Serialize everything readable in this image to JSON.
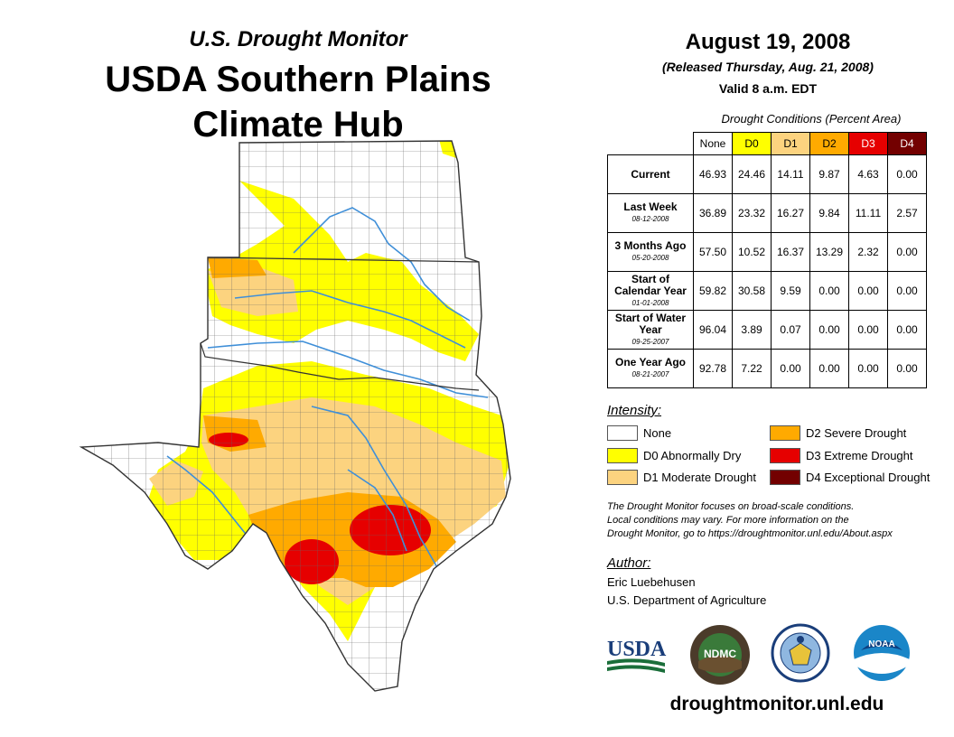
{
  "header": {
    "subtitle": "U.S. Drought Monitor",
    "title_line1": "USDA Southern Plains",
    "title_line2": "Climate Hub"
  },
  "date_block": {
    "date": "August 19, 2008",
    "released": "(Released Thursday, Aug. 21, 2008)",
    "valid": "Valid 8 a.m. EDT"
  },
  "conditions": {
    "caption": "Drought Conditions (Percent Area)",
    "columns": [
      "None",
      "D0",
      "D1",
      "D2",
      "D3",
      "D4"
    ],
    "rows": [
      {
        "label": "Current",
        "sub": "",
        "values": [
          "46.93",
          "24.46",
          "14.11",
          "9.87",
          "4.63",
          "0.00"
        ]
      },
      {
        "label": "Last Week",
        "sub": "08-12-2008",
        "values": [
          "36.89",
          "23.32",
          "16.27",
          "9.84",
          "11.11",
          "2.57"
        ]
      },
      {
        "label": "3 Months Ago",
        "sub": "05-20-2008",
        "values": [
          "57.50",
          "10.52",
          "16.37",
          "13.29",
          "2.32",
          "0.00"
        ]
      },
      {
        "label": "Start of Calendar Year",
        "sub": "01-01-2008",
        "values": [
          "59.82",
          "30.58",
          "9.59",
          "0.00",
          "0.00",
          "0.00"
        ]
      },
      {
        "label": "Start of Water Year",
        "sub": "09-25-2007",
        "values": [
          "96.04",
          "3.89",
          "0.07",
          "0.00",
          "0.00",
          "0.00"
        ]
      },
      {
        "label": "One Year Ago",
        "sub": "08-21-2007",
        "values": [
          "92.78",
          "7.22",
          "0.00",
          "0.00",
          "0.00",
          "0.00"
        ]
      }
    ]
  },
  "legend": {
    "title": "Intensity:",
    "items": [
      {
        "label": "None",
        "color": "#ffffff"
      },
      {
        "label": "D0 Abnormally Dry",
        "color": "#ffff00"
      },
      {
        "label": "D1 Moderate Drought",
        "color": "#fcd37f"
      },
      {
        "label": "D2 Severe Drought",
        "color": "#ffaa00"
      },
      {
        "label": "D3 Extreme Drought",
        "color": "#e60000"
      },
      {
        "label": "D4 Exceptional Drought",
        "color": "#730000"
      }
    ]
  },
  "note": {
    "line1": "The Drought Monitor focuses on broad-scale conditions.",
    "line2": "Local conditions may vary. For more information on the",
    "line3": "Drought Monitor, go to https://droughtmonitor.unl.edu/About.aspx"
  },
  "author": {
    "label": "Author:",
    "name": "Eric Luebehusen",
    "org": "U.S. Department of Agriculture"
  },
  "logos": {
    "usda": "USDA",
    "ndmc": "NDMC",
    "noaa": "NOAA"
  },
  "footer_url": "droughtmonitor.unl.edu"
}
